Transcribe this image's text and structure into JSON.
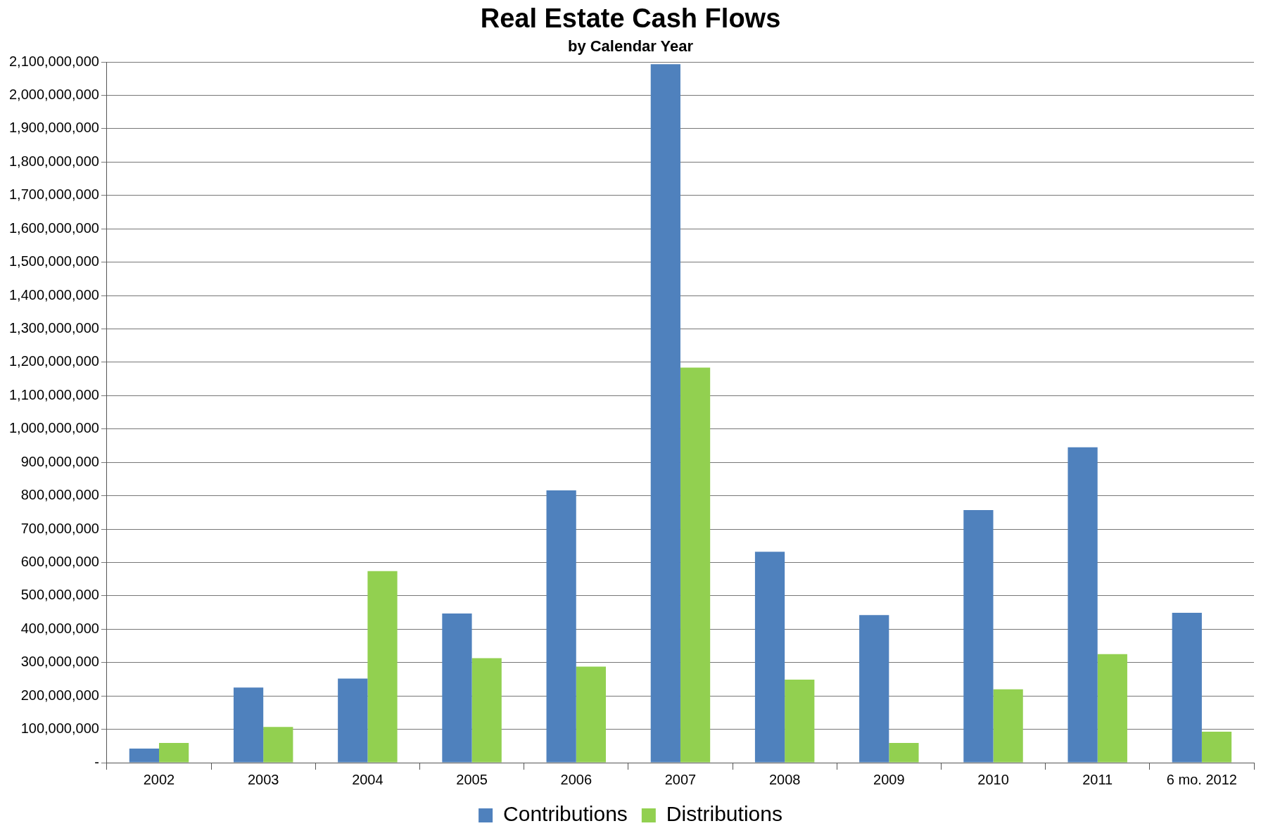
{
  "chart_data": {
    "type": "bar",
    "title": "Real Estate Cash Flows",
    "subtitle": "by Calendar Year",
    "categories": [
      "2002",
      "2003",
      "2004",
      "2005",
      "2006",
      "2007",
      "2008",
      "2009",
      "2010",
      "2011",
      "6 mo. 2012"
    ],
    "series": [
      {
        "name": "Contributions",
        "color": "#4f81bd",
        "values": [
          42000000,
          225000000,
          252000000,
          447000000,
          816000000,
          2093000000,
          632000000,
          442000000,
          757000000,
          945000000,
          449000000
        ]
      },
      {
        "name": "Distributions",
        "color": "#92d050",
        "values": [
          59000000,
          107000000,
          574000000,
          313000000,
          288000000,
          1184000000,
          249000000,
          59000000,
          220000000,
          325000000,
          93000000
        ]
      }
    ],
    "ylim": [
      0,
      2100000000
    ],
    "yticks": [
      {
        "value": 0,
        "label": "-"
      },
      {
        "value": 100000000,
        "label": "100,000,000"
      },
      {
        "value": 200000000,
        "label": "200,000,000"
      },
      {
        "value": 300000000,
        "label": "300,000,000"
      },
      {
        "value": 400000000,
        "label": "400,000,000"
      },
      {
        "value": 500000000,
        "label": "500,000,000"
      },
      {
        "value": 600000000,
        "label": "600,000,000"
      },
      {
        "value": 700000000,
        "label": "700,000,000"
      },
      {
        "value": 800000000,
        "label": "800,000,000"
      },
      {
        "value": 900000000,
        "label": "900,000,000"
      },
      {
        "value": 1000000000,
        "label": "1,000,000,000"
      },
      {
        "value": 1100000000,
        "label": "1,100,000,000"
      },
      {
        "value": 1200000000,
        "label": "1,200,000,000"
      },
      {
        "value": 1300000000,
        "label": "1,300,000,000"
      },
      {
        "value": 1400000000,
        "label": "1,400,000,000"
      },
      {
        "value": 1500000000,
        "label": "1,500,000,000"
      },
      {
        "value": 1600000000,
        "label": "1,600,000,000"
      },
      {
        "value": 1700000000,
        "label": "1,700,000,000"
      },
      {
        "value": 1800000000,
        "label": "1,800,000,000"
      },
      {
        "value": 1900000000,
        "label": "1,900,000,000"
      },
      {
        "value": 2000000000,
        "label": "2,000,000,000"
      },
      {
        "value": 2100000000,
        "label": "2,100,000,000"
      }
    ],
    "grid": "y",
    "legend": "bottom"
  }
}
